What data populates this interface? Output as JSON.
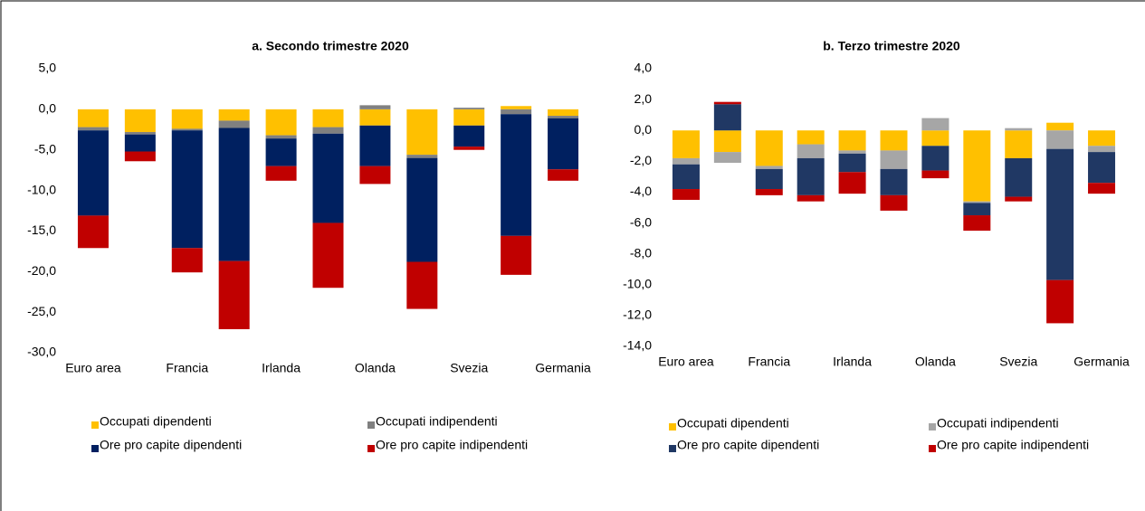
{
  "chart_data": [
    {
      "type": "stacked_bar",
      "title": "a. Secondo trimestre 2020",
      "categories": [
        "Euro area",
        null,
        "Francia",
        null,
        "Irlanda",
        null,
        "Olanda",
        null,
        "Svezia",
        null,
        "Germania"
      ],
      "series": [
        {
          "name": "Occupati dipendenti",
          "color": "#FFC000",
          "values": [
            -2.2,
            -2.8,
            -2.4,
            -1.4,
            -3.2,
            -2.2,
            -2.0,
            -5.6,
            -2.0,
            0.4,
            -0.8
          ]
        },
        {
          "name": "Occupati indipendenti",
          "color": "#808080",
          "values": [
            -0.4,
            -0.3,
            -0.2,
            -0.9,
            -0.4,
            -0.8,
            0.5,
            -0.4,
            0.2,
            -0.6,
            -0.3
          ]
        },
        {
          "name": "Ore pro capite dipendenti",
          "color": "#002060",
          "values": [
            -10.5,
            -2.1,
            -14.5,
            -16.4,
            -3.4,
            -11.0,
            -5.0,
            -12.8,
            -2.6,
            -15.0,
            -6.3
          ]
        },
        {
          "name": "Ore pro capite indipendenti",
          "color": "#C00000",
          "values": [
            -4.0,
            -1.2,
            -3.0,
            -8.4,
            -1.8,
            -8.0,
            -2.2,
            -5.8,
            -0.4,
            -4.8,
            -1.4
          ]
        }
      ],
      "ylim": [
        -30,
        5
      ],
      "yticks": [
        {
          "value": 5,
          "label": "5,0"
        },
        {
          "value": 0,
          "label": "0,0"
        },
        {
          "value": -5,
          "label": "-5,0"
        },
        {
          "value": -10,
          "label": "-10,0"
        },
        {
          "value": -15,
          "label": "-15,0"
        },
        {
          "value": -20,
          "label": "-20,0"
        },
        {
          "value": -25,
          "label": "-25,0"
        },
        {
          "value": -30,
          "label": "-30,0"
        }
      ],
      "grid": false,
      "legend": "bottom"
    },
    {
      "type": "stacked_bar",
      "title": "b. Terzo trimestre 2020",
      "categories": [
        "Euro area",
        null,
        "Francia",
        null,
        "Irlanda",
        null,
        "Olanda",
        null,
        "Svezia",
        null,
        "Germania"
      ],
      "series": [
        {
          "name": "Occupati dipendenti",
          "color": "#FFC000",
          "values": [
            -1.8,
            -1.4,
            -2.3,
            -0.9,
            -1.3,
            -1.3,
            -1.0,
            -4.6,
            -1.8,
            0.5,
            -1.0
          ]
        },
        {
          "name": "Occupati indipendenti",
          "color": "#A6A6A6",
          "values": [
            -0.4,
            -0.7,
            -0.2,
            -0.9,
            -0.2,
            -1.2,
            0.8,
            -0.1,
            0.15,
            -1.2,
            -0.4
          ]
        },
        {
          "name": "Ore pro capite dipendenti",
          "color": "#203864",
          "values": [
            -1.6,
            1.7,
            -1.3,
            -2.4,
            -1.2,
            -1.7,
            -1.6,
            -0.8,
            -2.5,
            -8.5,
            -2.0
          ]
        },
        {
          "name": "Ore pro capite indipendenti",
          "color": "#C00000",
          "values": [
            -0.7,
            0.15,
            -0.4,
            -0.4,
            -1.4,
            -1.0,
            -0.5,
            -1.0,
            -0.3,
            -2.8,
            -0.7
          ]
        }
      ],
      "ylim": [
        -14,
        4
      ],
      "yticks": [
        {
          "value": 4,
          "label": "4,0"
        },
        {
          "value": 2,
          "label": "2,0"
        },
        {
          "value": 0,
          "label": "0,0"
        },
        {
          "value": -2,
          "label": "-2,0"
        },
        {
          "value": -4,
          "label": "-4,0"
        },
        {
          "value": -6,
          "label": "-6,0"
        },
        {
          "value": -8,
          "label": "-8,0"
        },
        {
          "value": -10,
          "label": "-10,0"
        },
        {
          "value": -12,
          "label": "-12,0"
        },
        {
          "value": -14,
          "label": "-14,0"
        }
      ],
      "grid": false,
      "legend": "bottom"
    }
  ]
}
